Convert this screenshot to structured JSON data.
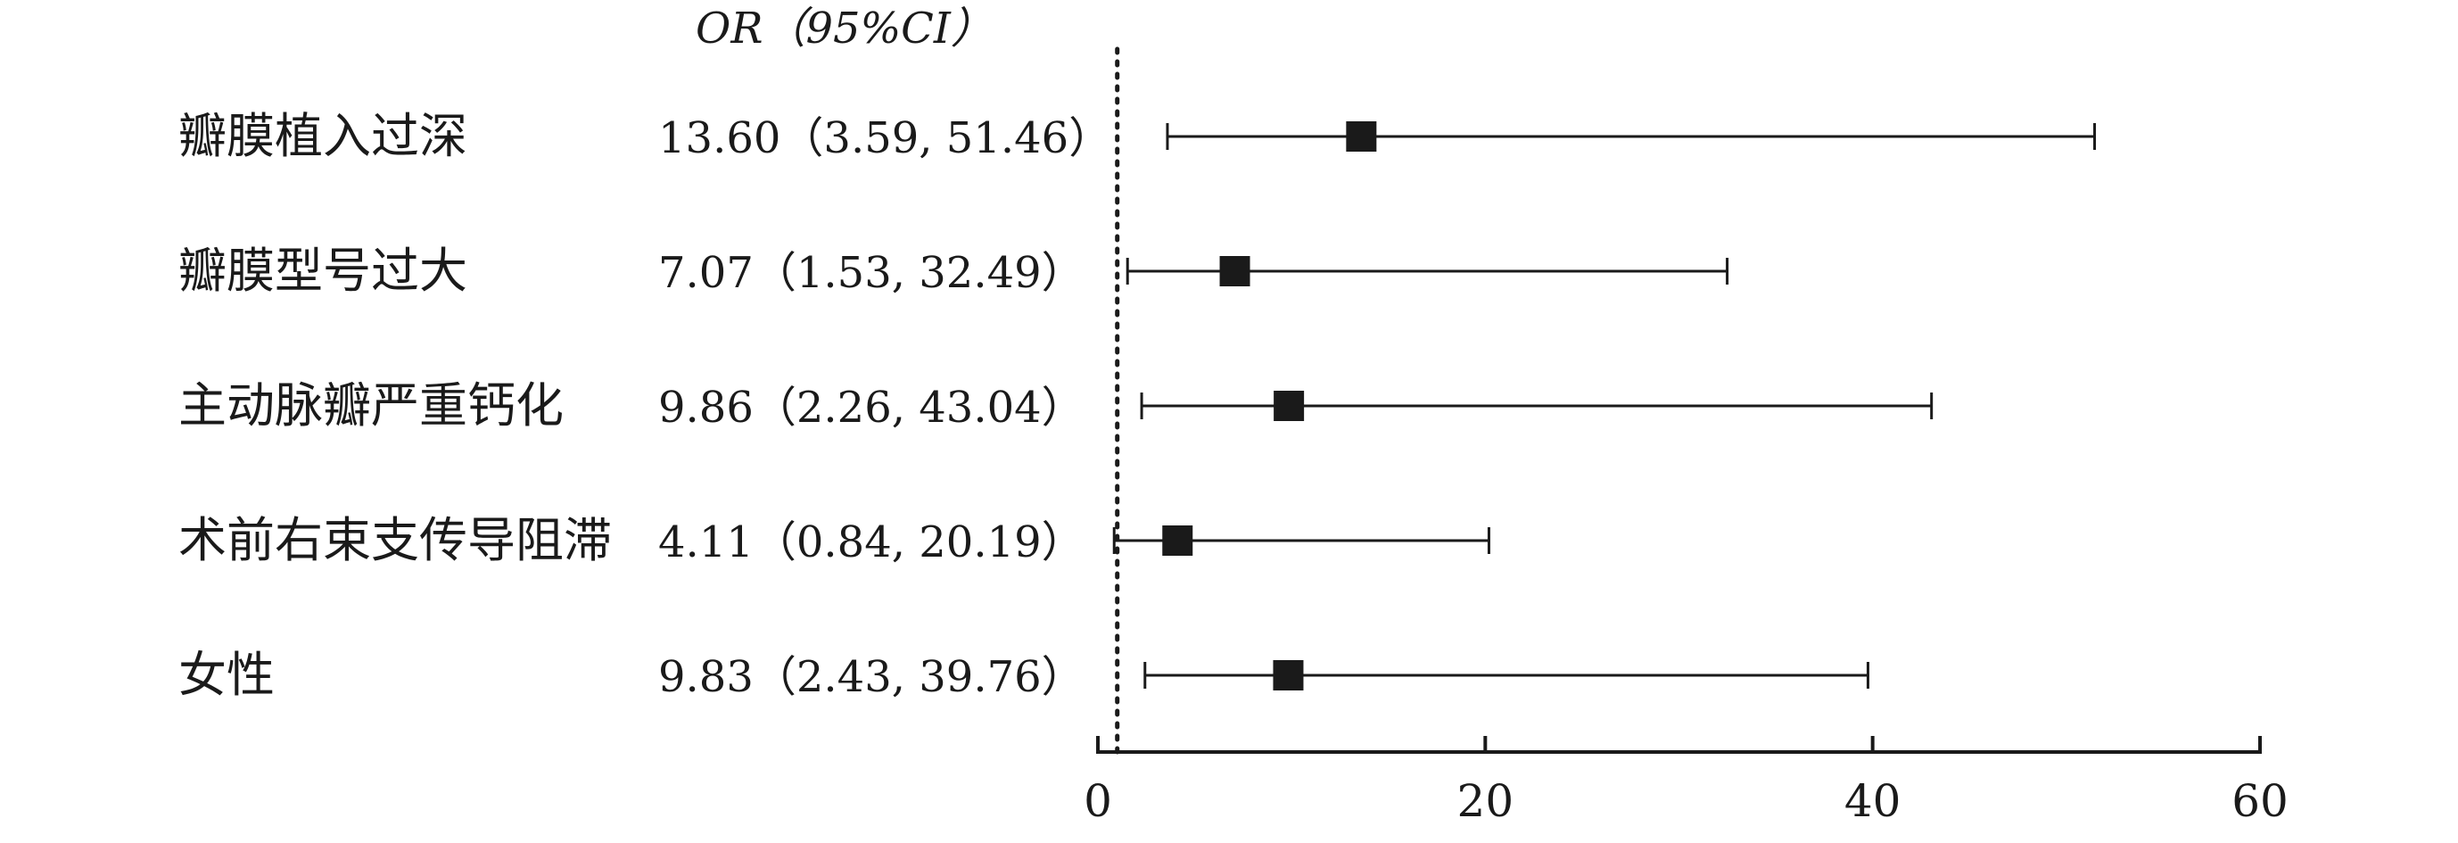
{
  "chart_data": {
    "type": "forest",
    "header": "OR（95%CI）",
    "rows": [
      {
        "label": "瓣膜植入过深",
        "or": 13.6,
        "lower": 3.59,
        "upper": 51.46,
        "text": "13.60（3.59, 51.46）"
      },
      {
        "label": "瓣膜型号过大",
        "or": 7.07,
        "lower": 1.53,
        "upper": 32.49,
        "text": "7.07（1.53, 32.49）"
      },
      {
        "label": "主动脉瓣严重钙化",
        "or": 9.86,
        "lower": 2.26,
        "upper": 43.04,
        "text": "9.86（2.26, 43.04）"
      },
      {
        "label": "术前右束支传导阻滞",
        "or": 4.11,
        "lower": 0.84,
        "upper": 20.19,
        "text": "4.11（0.84, 20.19）"
      },
      {
        "label": "女性",
        "or": 9.83,
        "lower": 2.43,
        "upper": 39.76,
        "text": "9.83（2.43, 39.76）"
      }
    ],
    "x_axis": {
      "min": 0,
      "max": 60,
      "ticks": [
        0,
        20,
        40,
        60
      ],
      "tick_labels": [
        "0",
        "20",
        "40",
        "60"
      ]
    },
    "reference_value": 1,
    "marker_color": "#1a1a1a",
    "line_color": "#1a1a1a"
  }
}
